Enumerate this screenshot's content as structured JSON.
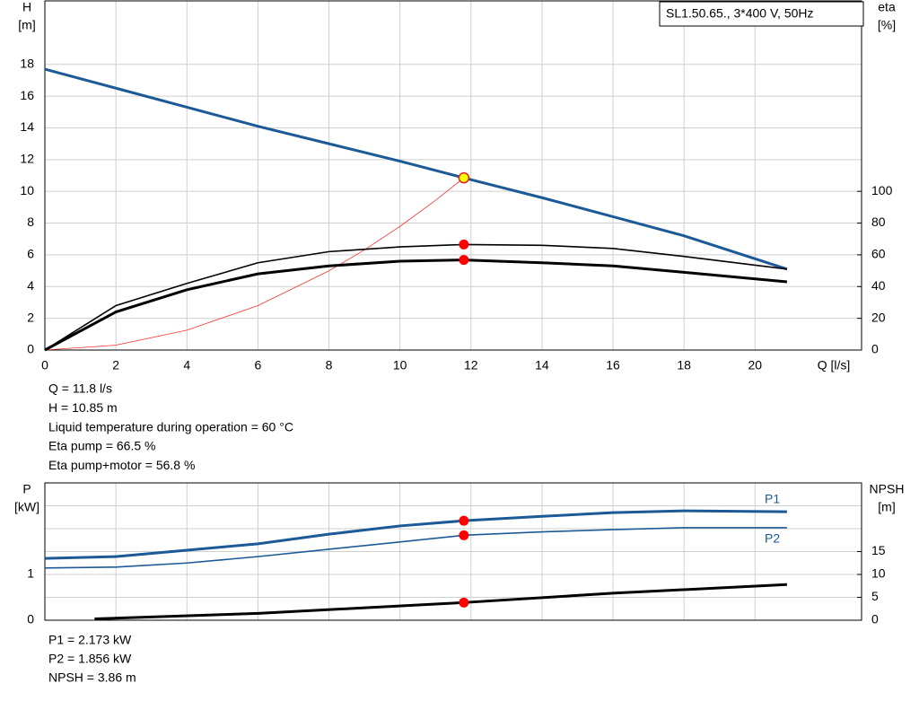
{
  "chart_data": [
    {
      "type": "line",
      "xlim": [
        0,
        23
      ],
      "xticks": [
        0,
        2,
        4,
        6,
        8,
        10,
        12,
        14,
        16,
        18,
        20
      ],
      "x_label": "Q [l/s]",
      "ylim": [
        0,
        22
      ],
      "yticks": [
        0,
        2,
        4,
        6,
        8,
        10,
        12,
        14,
        16,
        18
      ],
      "y_label": [
        "H",
        "[m]"
      ],
      "y2lim": [
        0,
        220
      ],
      "y2ticks": [
        0,
        20,
        40,
        60,
        80,
        100
      ],
      "y2_label": [
        "eta",
        "[%]"
      ],
      "grid": true,
      "legend_box": "SL1.50.65., 3*400 V, 50Hz",
      "duty_x": 11.8,
      "series": [
        {
          "color": "#1b5a96",
          "style": "thick",
          "x": [
            0,
            2,
            4,
            6,
            8,
            10,
            11.8,
            14,
            16,
            18,
            20.9
          ],
          "values": [
            17.7,
            16.5,
            15.3,
            14.1,
            13.0,
            11.9,
            10.85,
            9.6,
            8.4,
            7.2,
            5.1
          ],
          "marker": 10.85,
          "marker_color": "#ffff00"
        },
        {
          "color": "#ff3030",
          "style": "hair",
          "x": [
            0,
            2,
            4,
            6,
            8,
            9,
            10,
            11,
            11.8
          ],
          "values": [
            0,
            0.31,
            1.25,
            2.8,
            4.99,
            6.31,
            7.79,
            9.43,
            10.85
          ]
        },
        {
          "color": "#000000",
          "style": "thin",
          "axis": "y2",
          "x": [
            0,
            2,
            4,
            6,
            8,
            10,
            11.8,
            14,
            16,
            18,
            20.9
          ],
          "values": [
            0,
            28,
            42,
            55,
            62,
            65,
            66.5,
            66,
            64,
            59,
            51
          ],
          "marker": 66.5,
          "marker_color": "#ff0000"
        },
        {
          "color": "#000000",
          "style": "thick",
          "axis": "y2",
          "x": [
            0,
            2,
            4,
            6,
            8,
            10,
            11.8,
            14,
            16,
            18,
            20.9
          ],
          "values": [
            0,
            24,
            38,
            48,
            53,
            56,
            56.8,
            55,
            53,
            49,
            43
          ],
          "marker": 56.8,
          "marker_color": "#ff0000"
        }
      ],
      "readout": [
        "Q = 11.8 l/s",
        "H = 10.85 m",
        "Liquid temperature during operation = 60 °C",
        "Eta pump = 66.5 %",
        "Eta pump+motor = 56.8 %"
      ]
    },
    {
      "type": "line",
      "xlim": [
        0,
        23
      ],
      "xticks": [
        0,
        2,
        4,
        6,
        8,
        10,
        12,
        14,
        16,
        18,
        20
      ],
      "xtick_labels": false,
      "ylim": [
        0,
        3
      ],
      "yticks": [
        0,
        1
      ],
      "ygrid": [
        0,
        0.5,
        1,
        1.5,
        2,
        2.5
      ],
      "y_label": [
        "P",
        "[kW]"
      ],
      "y2lim": [
        0,
        30
      ],
      "y2ticks": [
        0,
        5,
        10,
        15
      ],
      "y2_label": [
        "NPSH",
        "[m]"
      ],
      "grid": true,
      "duty_x": 11.8,
      "series": [
        {
          "name": "P1",
          "color": "#1b5a96",
          "style": "thick",
          "x": [
            0,
            2,
            4,
            6,
            8,
            10,
            11.8,
            14,
            16,
            18,
            20.9
          ],
          "values": [
            1.35,
            1.39,
            1.53,
            1.67,
            1.88,
            2.06,
            2.173,
            2.27,
            2.35,
            2.39,
            2.37
          ],
          "marker": 2.173,
          "marker_color": "#ff0000"
        },
        {
          "name": "P2",
          "color": "#1b5a96",
          "style": "thin",
          "x": [
            0,
            2,
            4,
            6,
            8,
            10,
            11.8,
            14,
            16,
            18,
            20.9
          ],
          "values": [
            1.14,
            1.16,
            1.25,
            1.39,
            1.55,
            1.71,
            1.856,
            1.93,
            1.98,
            2.02,
            2.02
          ],
          "marker": 1.856,
          "marker_color": "#ff0000"
        },
        {
          "color": "#000000",
          "style": "thick",
          "axis": "y2",
          "x": [
            1.4,
            6,
            11.8,
            16,
            20.9
          ],
          "values": [
            0.3,
            1.5,
            3.86,
            5.9,
            7.8
          ],
          "marker": 3.86,
          "marker_color": "#ff0000"
        }
      ],
      "readout": [
        "P1 = 2.173 kW",
        "P2 = 1.856 kW",
        "NPSH = 3.86 m"
      ]
    }
  ]
}
